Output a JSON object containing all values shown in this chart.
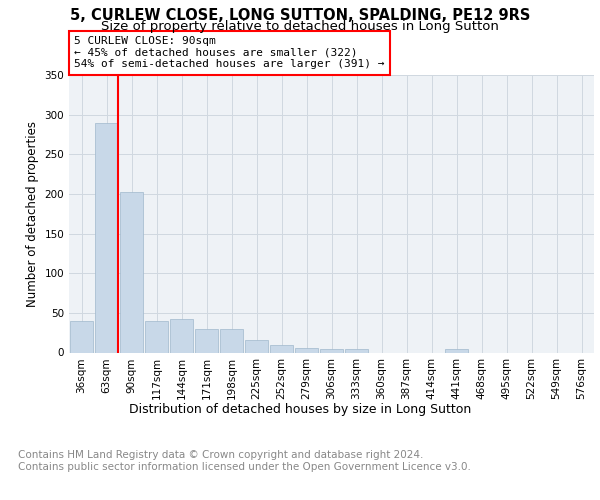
{
  "title1": "5, CURLEW CLOSE, LONG SUTTON, SPALDING, PE12 9RS",
  "title2": "Size of property relative to detached houses in Long Sutton",
  "xlabel": "Distribution of detached houses by size in Long Sutton",
  "ylabel": "Number of detached properties",
  "footer": "Contains HM Land Registry data © Crown copyright and database right 2024.\nContains public sector information licensed under the Open Government Licence v3.0.",
  "categories": [
    "36sqm",
    "63sqm",
    "90sqm",
    "117sqm",
    "144sqm",
    "171sqm",
    "198sqm",
    "225sqm",
    "252sqm",
    "279sqm",
    "306sqm",
    "333sqm",
    "360sqm",
    "387sqm",
    "414sqm",
    "441sqm",
    "468sqm",
    "495sqm",
    "522sqm",
    "549sqm",
    "576sqm"
  ],
  "values": [
    40,
    290,
    203,
    40,
    42,
    30,
    30,
    16,
    9,
    6,
    5,
    5,
    0,
    0,
    0,
    4,
    0,
    0,
    0,
    0,
    0
  ],
  "bar_color": "#c8d8e8",
  "bar_edge_color": "#a0b8cc",
  "red_line_index": 1,
  "annotation_box_text": "5 CURLEW CLOSE: 90sqm\n← 45% of detached houses are smaller (322)\n54% of semi-detached houses are larger (391) →",
  "ylim": [
    0,
    350
  ],
  "yticks": [
    0,
    50,
    100,
    150,
    200,
    250,
    300,
    350
  ],
  "grid_color": "#d0d8e0",
  "bg_color": "#eef2f6",
  "title1_fontsize": 10.5,
  "title2_fontsize": 9.5,
  "xlabel_fontsize": 9,
  "ylabel_fontsize": 8.5,
  "tick_fontsize": 7.5,
  "ann_fontsize": 8,
  "footer_fontsize": 7.5
}
